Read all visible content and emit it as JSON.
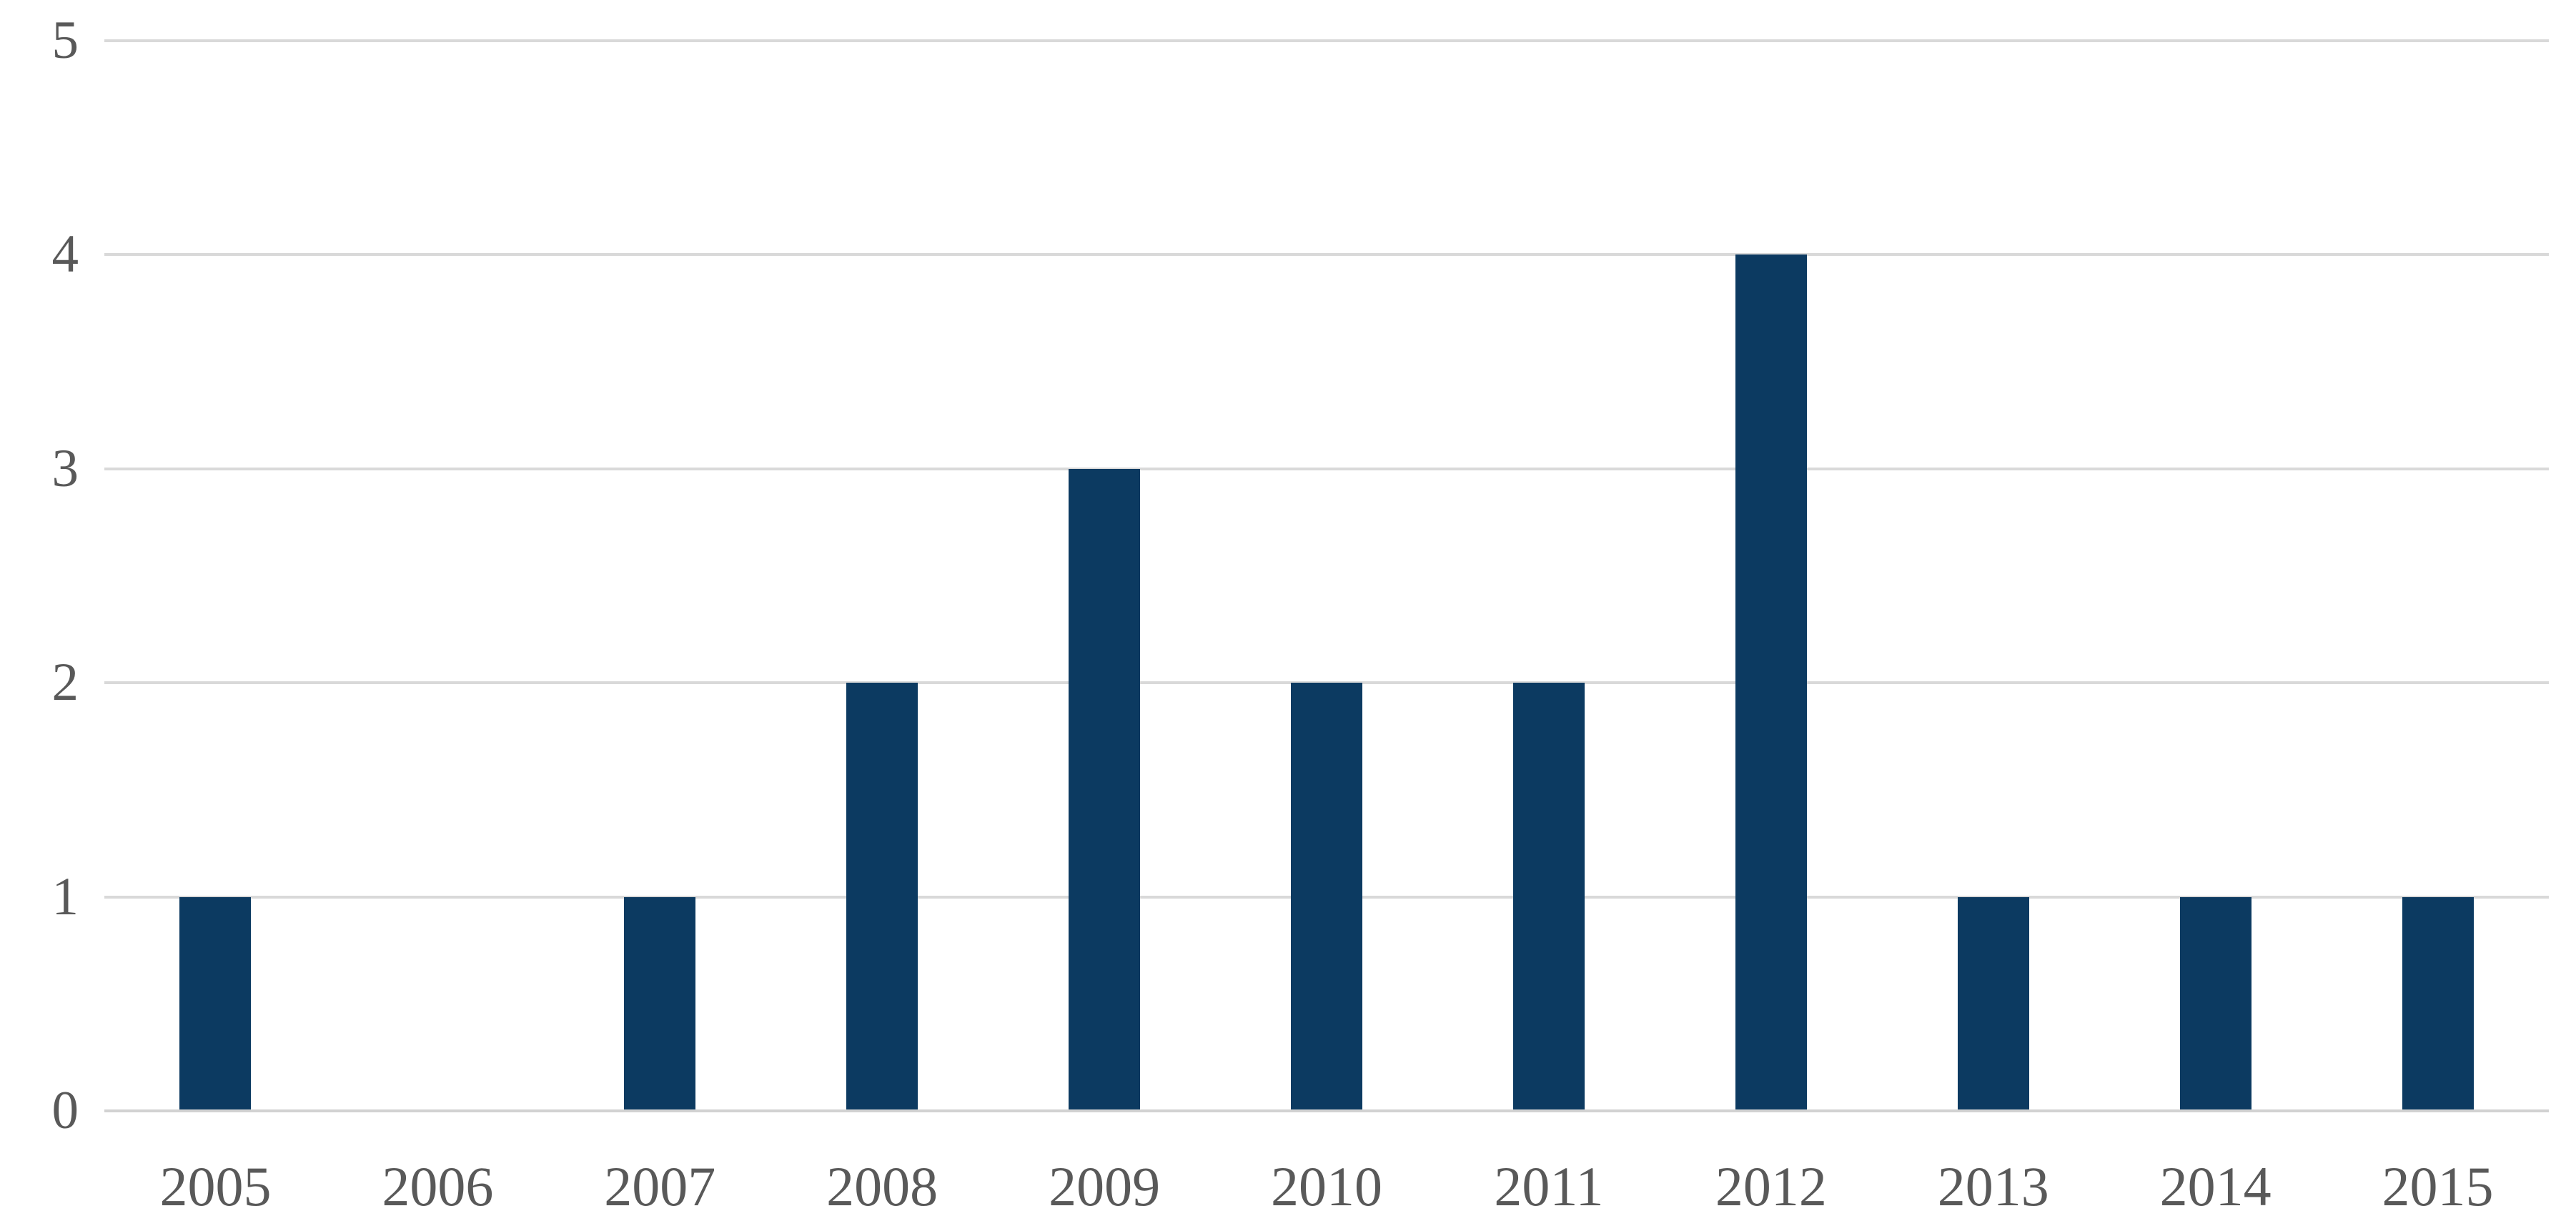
{
  "chart_data": {
    "type": "bar",
    "title": "",
    "xlabel": "",
    "ylabel": "",
    "categories": [
      "2005",
      "2006",
      "2007",
      "2008",
      "2009",
      "2010",
      "2011",
      "2012",
      "2013",
      "2014",
      "2015"
    ],
    "values": [
      1,
      0,
      1,
      2,
      3,
      2,
      2,
      4,
      1,
      1,
      1
    ],
    "ylim": [
      0,
      5
    ],
    "yticks": [
      "0",
      "1",
      "2",
      "3",
      "4",
      "5"
    ],
    "grid": true,
    "legend_position": "none",
    "colors": {
      "bar": "#0C3A61",
      "gridline": "#D9D9D9",
      "axis_line": "#D2D2D2",
      "tick_label": "#595959",
      "background": "#FFFFFF"
    }
  }
}
